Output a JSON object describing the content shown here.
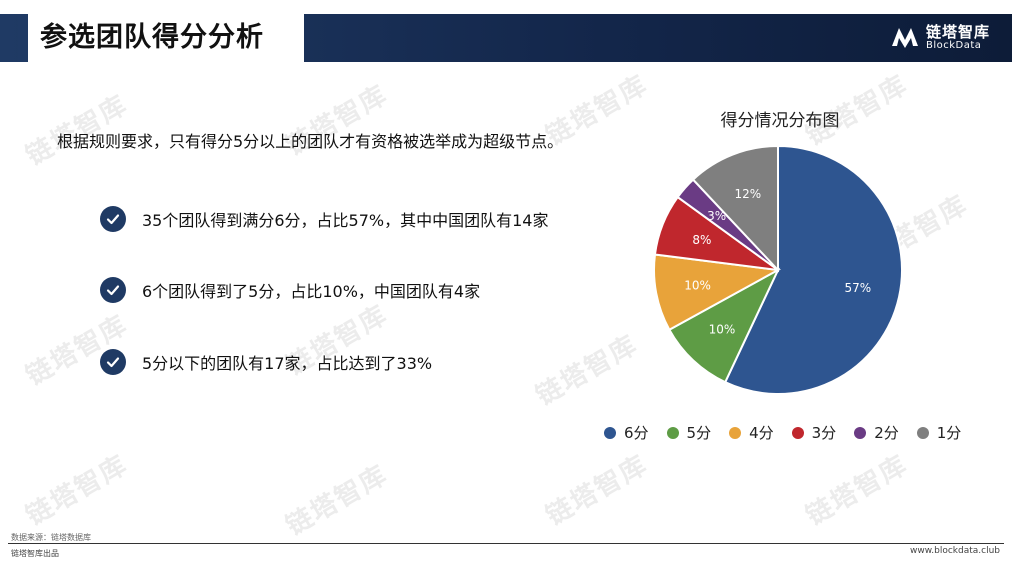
{
  "header": {
    "title": "参选团队得分分析",
    "brand_cn": "链塔智库",
    "brand_en": "BlockData"
  },
  "watermark_text": "链塔智库",
  "intro": "根据规则要求，只有得分5分以上的团队才有资格被选举成为超级节点。",
  "bullets": [
    "35个团队得到满分6分，占比57%，其中中国团队有14家",
    "6个团队得到了5分，占比10%，中国团队有4家",
    "5分以下的团队有17家，占比达到了33%"
  ],
  "icons": {
    "check": "check-circle-icon",
    "logo": "blockdata-logo-icon"
  },
  "chart_data": {
    "type": "pie",
    "title": "得分情况分布图",
    "categories": [
      "6分",
      "5分",
      "4分",
      "3分",
      "2分",
      "1分"
    ],
    "values": [
      57,
      10,
      10,
      8,
      3,
      12
    ],
    "labels": [
      "57%",
      "10%",
      "10%",
      "8%",
      "3%",
      "12%"
    ],
    "colors": [
      "#2e5590",
      "#5e9c45",
      "#e8a33a",
      "#c0272d",
      "#6a3b84",
      "#7f7f7f"
    ],
    "legend_position": "bottom"
  },
  "footer": {
    "source": "数据来源：链塔数据库",
    "left": "链塔智库出品",
    "right": "www.blockdata.club"
  }
}
